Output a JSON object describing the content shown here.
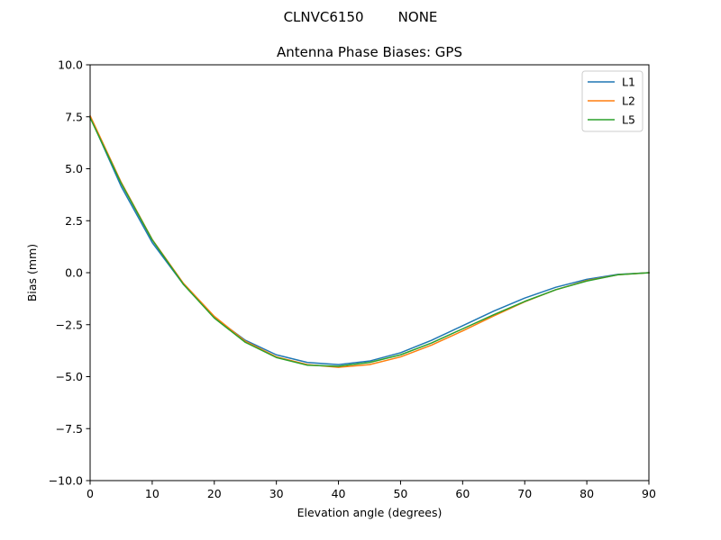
{
  "figure": {
    "suptitle": "CLNVC6150        NONE"
  },
  "chart_data": {
    "type": "line",
    "title": "Antenna Phase Biases: GPS",
    "xlabel": "Elevation angle (degrees)",
    "ylabel": "Bias (mm)",
    "xlim": [
      0,
      90
    ],
    "ylim": [
      -10,
      10
    ],
    "xticks": [
      0,
      10,
      20,
      30,
      40,
      50,
      60,
      70,
      80,
      90
    ],
    "yticks": [
      -10.0,
      -7.5,
      -5.0,
      -2.5,
      0.0,
      2.5,
      5.0,
      7.5,
      10.0
    ],
    "xtick_labels": [
      "0",
      "10",
      "20",
      "30",
      "40",
      "50",
      "60",
      "70",
      "80",
      "90"
    ],
    "ytick_labels": [
      "−10.0",
      "−7.5",
      "−5.0",
      "−2.5",
      "0.0",
      "2.5",
      "5.0",
      "7.5",
      "10.0"
    ],
    "grid": false,
    "legend_position": "upper-right",
    "x": [
      0,
      5,
      10,
      15,
      20,
      25,
      30,
      35,
      40,
      45,
      50,
      55,
      60,
      65,
      70,
      75,
      80,
      85,
      90
    ],
    "series": [
      {
        "name": "L1",
        "color": "#1f77b4",
        "values": [
          7.5,
          4.15,
          1.45,
          -0.55,
          -2.15,
          -3.25,
          -3.95,
          -4.32,
          -4.42,
          -4.25,
          -3.85,
          -3.25,
          -2.55,
          -1.85,
          -1.22,
          -0.7,
          -0.32,
          -0.08,
          0.0
        ]
      },
      {
        "name": "L2",
        "color": "#ff7f0e",
        "values": [
          7.55,
          4.35,
          1.6,
          -0.5,
          -2.1,
          -3.3,
          -4.05,
          -4.42,
          -4.55,
          -4.42,
          -4.05,
          -3.48,
          -2.8,
          -2.08,
          -1.4,
          -0.82,
          -0.38,
          -0.1,
          0.0
        ]
      },
      {
        "name": "L5",
        "color": "#2ca02c",
        "values": [
          7.45,
          4.3,
          1.58,
          -0.55,
          -2.18,
          -3.35,
          -4.08,
          -4.45,
          -4.5,
          -4.32,
          -3.95,
          -3.38,
          -2.7,
          -2.02,
          -1.38,
          -0.82,
          -0.4,
          -0.1,
          0.0
        ]
      }
    ]
  }
}
